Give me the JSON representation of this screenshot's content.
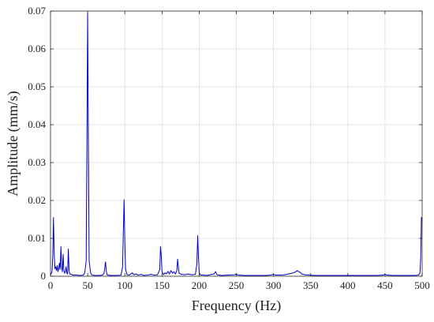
{
  "chart_data": {
    "type": "line",
    "title": "",
    "xlabel": "Frequency (Hz)",
    "ylabel": "Amplitude (mm/s)",
    "xlim": [
      0,
      500
    ],
    "ylim": [
      0,
      0.07
    ],
    "x_ticks": [
      0,
      50,
      100,
      150,
      200,
      250,
      300,
      350,
      400,
      450,
      500
    ],
    "y_ticks": [
      0,
      0.01,
      0.02,
      0.03,
      0.04,
      0.05,
      0.06,
      0.07
    ],
    "x_tick_labels": [
      "0",
      "50",
      "100",
      "150",
      "200",
      "250",
      "300",
      "350",
      "400",
      "450",
      "500"
    ],
    "y_tick_labels": [
      "0",
      "0.01",
      "0.02",
      "0.03",
      "0.04",
      "0.05",
      "0.06",
      "0.07"
    ],
    "grid": true,
    "legend": "none",
    "line_color": "#0000cc",
    "series": [
      {
        "values": [
          [
            0,
            0.0003
          ],
          [
            2,
            0.0012
          ],
          [
            3,
            0.005
          ],
          [
            4,
            0.0155
          ],
          [
            5,
            0.006
          ],
          [
            6,
            0.002
          ],
          [
            7,
            0.0025
          ],
          [
            8,
            0.0015
          ],
          [
            9,
            0.0028
          ],
          [
            10,
            0.0012
          ],
          [
            11,
            0.002
          ],
          [
            12,
            0.0035
          ],
          [
            13,
            0.0018
          ],
          [
            14,
            0.0078
          ],
          [
            15,
            0.0025
          ],
          [
            16,
            0.0012
          ],
          [
            17,
            0.0058
          ],
          [
            18,
            0.0015
          ],
          [
            19,
            0.0008
          ],
          [
            20,
            0.0012
          ],
          [
            21,
            0.0025
          ],
          [
            22,
            0.0008
          ],
          [
            23,
            0.0006
          ],
          [
            24,
            0.0072
          ],
          [
            25,
            0.0015
          ],
          [
            26,
            0.0006
          ],
          [
            28,
            0.0005
          ],
          [
            30,
            0.0003
          ],
          [
            35,
            0.0003
          ],
          [
            40,
            0.0002
          ],
          [
            44,
            0.0003
          ],
          [
            46,
            0.0008
          ],
          [
            48,
            0.004
          ],
          [
            49,
            0.035
          ],
          [
            50,
            0.0695
          ],
          [
            51,
            0.035
          ],
          [
            52,
            0.004
          ],
          [
            54,
            0.0008
          ],
          [
            56,
            0.0003
          ],
          [
            60,
            0.0002
          ],
          [
            65,
            0.0002
          ],
          [
            70,
            0.0003
          ],
          [
            72,
            0.0008
          ],
          [
            73,
            0.0022
          ],
          [
            74,
            0.0038
          ],
          [
            75,
            0.0015
          ],
          [
            76,
            0.0004
          ],
          [
            80,
            0.0002
          ],
          [
            85,
            0.0002
          ],
          [
            90,
            0.0002
          ],
          [
            95,
            0.0003
          ],
          [
            97,
            0.0025
          ],
          [
            98,
            0.012
          ],
          [
            99,
            0.0202
          ],
          [
            100,
            0.009
          ],
          [
            101,
            0.0018
          ],
          [
            103,
            0.0004
          ],
          [
            106,
            0.0003
          ],
          [
            108,
            0.0006
          ],
          [
            110,
            0.0009
          ],
          [
            112,
            0.0004
          ],
          [
            115,
            0.0006
          ],
          [
            118,
            0.0003
          ],
          [
            122,
            0.0005
          ],
          [
            126,
            0.0002
          ],
          [
            130,
            0.0003
          ],
          [
            135,
            0.0005
          ],
          [
            140,
            0.0003
          ],
          [
            144,
            0.0004
          ],
          [
            147,
            0.0018
          ],
          [
            148,
            0.0078
          ],
          [
            149,
            0.0055
          ],
          [
            150,
            0.0012
          ],
          [
            152,
            0.0004
          ],
          [
            154,
            0.0009
          ],
          [
            156,
            0.0006
          ],
          [
            158,
            0.0013
          ],
          [
            160,
            0.0006
          ],
          [
            162,
            0.0015
          ],
          [
            164,
            0.0008
          ],
          [
            166,
            0.0012
          ],
          [
            168,
            0.0006
          ],
          [
            170,
            0.0015
          ],
          [
            171,
            0.0045
          ],
          [
            172,
            0.0025
          ],
          [
            173,
            0.0008
          ],
          [
            176,
            0.0005
          ],
          [
            180,
            0.0004
          ],
          [
            185,
            0.0006
          ],
          [
            190,
            0.0004
          ],
          [
            195,
            0.0005
          ],
          [
            197,
            0.0035
          ],
          [
            198,
            0.0107
          ],
          [
            199,
            0.0055
          ],
          [
            200,
            0.001
          ],
          [
            202,
            0.0003
          ],
          [
            206,
            0.0003
          ],
          [
            210,
            0.0002
          ],
          [
            215,
            0.0004
          ],
          [
            220,
            0.0006
          ],
          [
            222,
            0.0012
          ],
          [
            224,
            0.0004
          ],
          [
            230,
            0.0002
          ],
          [
            240,
            0.0003
          ],
          [
            248,
            0.0004
          ],
          [
            250,
            0.0006
          ],
          [
            252,
            0.0003
          ],
          [
            260,
            0.0002
          ],
          [
            270,
            0.0002
          ],
          [
            280,
            0.0002
          ],
          [
            290,
            0.0002
          ],
          [
            296,
            0.0003
          ],
          [
            300,
            0.0005
          ],
          [
            303,
            0.0003
          ],
          [
            310,
            0.0003
          ],
          [
            315,
            0.0004
          ],
          [
            320,
            0.0006
          ],
          [
            325,
            0.0008
          ],
          [
            328,
            0.001
          ],
          [
            330,
            0.0012
          ],
          [
            332,
            0.0015
          ],
          [
            334,
            0.0012
          ],
          [
            336,
            0.001
          ],
          [
            338,
            0.0006
          ],
          [
            342,
            0.0004
          ],
          [
            348,
            0.0003
          ],
          [
            355,
            0.0002
          ],
          [
            360,
            0.0002
          ],
          [
            370,
            0.0002
          ],
          [
            380,
            0.0002
          ],
          [
            390,
            0.0002
          ],
          [
            400,
            0.0002
          ],
          [
            410,
            0.0002
          ],
          [
            420,
            0.0002
          ],
          [
            430,
            0.0002
          ],
          [
            440,
            0.0002
          ],
          [
            448,
            0.0003
          ],
          [
            450,
            0.0005
          ],
          [
            452,
            0.0003
          ],
          [
            460,
            0.0002
          ],
          [
            470,
            0.0002
          ],
          [
            480,
            0.0002
          ],
          [
            490,
            0.0002
          ],
          [
            495,
            0.0003
          ],
          [
            497,
            0.0008
          ],
          [
            498,
            0.0045
          ],
          [
            499,
            0.0155
          ],
          [
            500,
            0.0152
          ]
        ]
      }
    ]
  }
}
